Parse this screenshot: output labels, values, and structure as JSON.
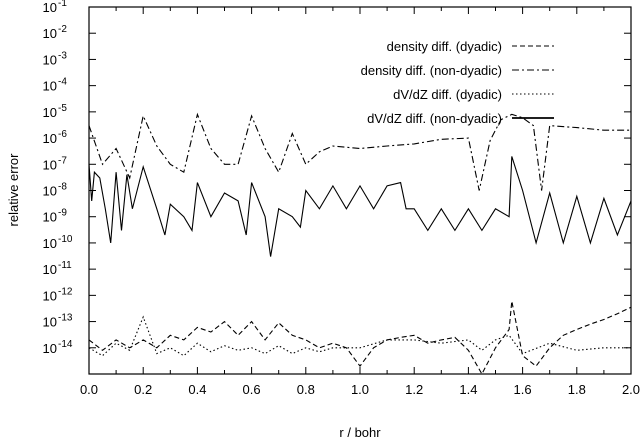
{
  "chart_data": {
    "type": "line",
    "title": "",
    "xlabel": "r / bohr",
    "ylabel": "relative error",
    "xlim": [
      0.0,
      2.0
    ],
    "ylim_log10": [
      -15,
      -1
    ],
    "y_scale": "log",
    "grid": false,
    "legend_position": "top-right",
    "x_ticks": [
      "0.0",
      "0.2",
      "0.4",
      "0.6",
      "0.8",
      "1.0",
      "1.2",
      "1.4",
      "1.6",
      "1.8",
      "2.0"
    ],
    "y_ticks": [
      {
        "base": "10",
        "exp": "-1"
      },
      {
        "base": "10",
        "exp": "-2"
      },
      {
        "base": "10",
        "exp": "-3"
      },
      {
        "base": "10",
        "exp": "-4"
      },
      {
        "base": "10",
        "exp": "-5"
      },
      {
        "base": "10",
        "exp": "-6"
      },
      {
        "base": "10",
        "exp": "-7"
      },
      {
        "base": "10",
        "exp": "-8"
      },
      {
        "base": "10",
        "exp": "-9"
      },
      {
        "base": "10",
        "exp": "-10"
      },
      {
        "base": "10",
        "exp": "-11"
      },
      {
        "base": "10",
        "exp": "-12"
      },
      {
        "base": "10",
        "exp": "-13"
      },
      {
        "base": "10",
        "exp": "-14"
      }
    ],
    "series": [
      {
        "name": "density diff. (dyadic)",
        "style": "dashed",
        "x": [
          0.0,
          0.05,
          0.1,
          0.15,
          0.2,
          0.25,
          0.3,
          0.35,
          0.4,
          0.45,
          0.5,
          0.55,
          0.6,
          0.65,
          0.7,
          0.75,
          0.8,
          0.85,
          0.9,
          0.95,
          1.0,
          1.05,
          1.1,
          1.15,
          1.2,
          1.25,
          1.3,
          1.35,
          1.4,
          1.45,
          1.5,
          1.55,
          1.56,
          1.6,
          1.65,
          1.7,
          1.75,
          1.8,
          1.85,
          1.9,
          1.95,
          2.0
        ],
        "y": [
          2e-14,
          8e-15,
          2e-14,
          1e-14,
          2e-14,
          1e-14,
          3e-14,
          2e-14,
          6e-14,
          4e-14,
          1e-13,
          3e-14,
          1e-13,
          2e-14,
          9e-14,
          3e-14,
          2e-14,
          1e-14,
          1.5e-14,
          1e-14,
          2e-15,
          1e-14,
          2e-14,
          2.5e-14,
          3e-14,
          1.5e-14,
          2e-14,
          2.5e-14,
          8e-15,
          1e-15,
          1e-14,
          5e-14,
          6e-13,
          5e-15,
          2e-15,
          1e-14,
          3e-14,
          5e-14,
          8e-14,
          1.2e-13,
          2e-13,
          3.5e-13
        ]
      },
      {
        "name": "density diff. (non-dyadic)",
        "style": "dash-dot",
        "x": [
          0.0,
          0.05,
          0.1,
          0.15,
          0.2,
          0.25,
          0.3,
          0.35,
          0.4,
          0.45,
          0.5,
          0.55,
          0.6,
          0.65,
          0.7,
          0.75,
          0.8,
          0.85,
          0.9,
          1.0,
          1.1,
          1.2,
          1.3,
          1.4,
          1.44,
          1.48,
          1.52,
          1.56,
          1.6,
          1.64,
          1.67,
          1.7,
          1.8,
          1.9,
          2.0
        ],
        "y": [
          3e-06,
          1e-07,
          4e-07,
          3e-08,
          7e-06,
          5e-07,
          1e-07,
          5e-08,
          8e-06,
          4e-07,
          1e-07,
          1e-07,
          7e-06,
          4e-07,
          5e-08,
          1.5e-06,
          1e-07,
          3e-07,
          5e-07,
          4e-07,
          5e-07,
          6e-07,
          9e-07,
          1e-06,
          1e-08,
          8e-07,
          5e-06,
          8e-06,
          6e-06,
          3e-06,
          1e-08,
          3e-06,
          2.5e-06,
          2e-06,
          2e-06
        ]
      },
      {
        "name": "dV/dZ diff. (dyadic)",
        "style": "dotted",
        "x": [
          0.0,
          0.05,
          0.1,
          0.15,
          0.2,
          0.25,
          0.3,
          0.35,
          0.4,
          0.45,
          0.5,
          0.55,
          0.6,
          0.65,
          0.7,
          0.75,
          0.8,
          0.85,
          0.9,
          1.0,
          1.1,
          1.2,
          1.3,
          1.4,
          1.45,
          1.5,
          1.55,
          1.6,
          1.7,
          1.8,
          1.9,
          2.0
        ],
        "y": [
          1e-14,
          5e-15,
          1.5e-14,
          8e-15,
          1.5e-13,
          6e-15,
          1e-14,
          5e-15,
          1.5e-14,
          7e-15,
          1.2e-14,
          8e-15,
          1e-14,
          6e-15,
          1.2e-14,
          6e-15,
          1e-14,
          7e-15,
          1e-14,
          1e-14,
          2e-14,
          2e-14,
          1.5e-14,
          2e-14,
          8e-15,
          2e-14,
          3e-14,
          6e-15,
          1.5e-14,
          8e-15,
          1e-14,
          1e-14
        ]
      },
      {
        "name": "dV/dZ diff. (non-dyadic)",
        "style": "solid",
        "x": [
          0.0,
          0.01,
          0.02,
          0.04,
          0.06,
          0.08,
          0.1,
          0.12,
          0.14,
          0.16,
          0.2,
          0.25,
          0.28,
          0.3,
          0.35,
          0.38,
          0.4,
          0.45,
          0.5,
          0.55,
          0.58,
          0.6,
          0.65,
          0.67,
          0.7,
          0.75,
          0.78,
          0.8,
          0.85,
          0.9,
          0.95,
          1.0,
          1.05,
          1.1,
          1.15,
          1.17,
          1.2,
          1.25,
          1.3,
          1.35,
          1.4,
          1.45,
          1.5,
          1.55,
          1.56,
          1.6,
          1.65,
          1.7,
          1.75,
          1.8,
          1.85,
          1.9,
          1.95,
          2.0
        ],
        "y": [
          1e-07,
          4e-09,
          5e-08,
          3e-08,
          2e-09,
          1e-10,
          5e-08,
          3e-10,
          4e-08,
          2e-09,
          8e-08,
          2e-09,
          2e-10,
          3e-09,
          1e-09,
          3e-10,
          2e-08,
          1e-09,
          8e-09,
          4e-09,
          2e-10,
          2e-08,
          1e-09,
          3e-11,
          2e-09,
          1e-09,
          4e-10,
          1e-08,
          2e-09,
          1.5e-08,
          2e-09,
          1.5e-08,
          2e-09,
          1.5e-08,
          2e-08,
          2e-09,
          2e-09,
          3e-10,
          2e-09,
          3e-10,
          2e-09,
          3e-10,
          2e-09,
          1e-09,
          2e-07,
          1e-08,
          1e-10,
          8e-09,
          1e-10,
          6e-09,
          1e-10,
          5e-09,
          2e-10,
          4e-09
        ]
      }
    ]
  }
}
